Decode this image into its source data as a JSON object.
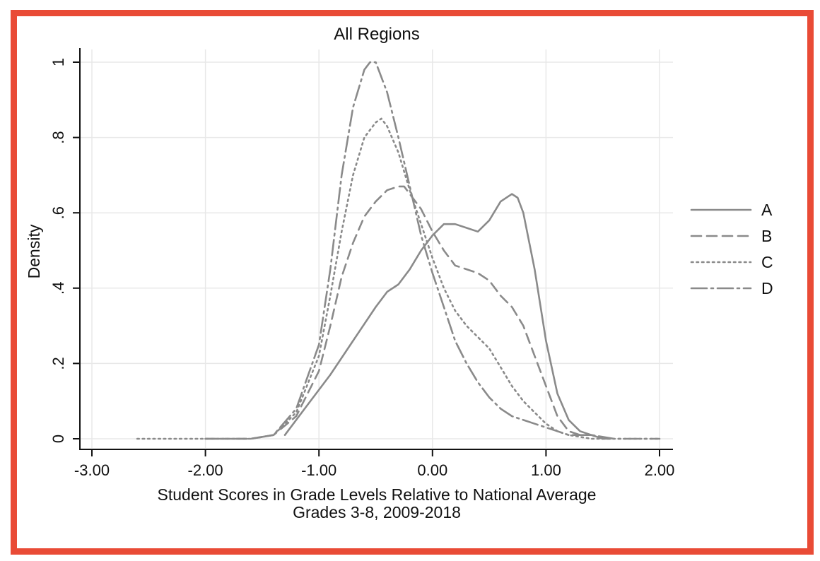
{
  "colors": {
    "frame": "#e94b36",
    "line": "#8a8a8a",
    "axis": "#111111",
    "grid": "#e8e8e8"
  },
  "chart_data": {
    "type": "line",
    "title": "All Regions",
    "xlabel": "Student Scores in Grade Levels Relative to National Average",
    "xlabel2": "Grades 3-8, 2009-2018",
    "ylabel": "Density",
    "xlim": [
      -3.0,
      2.0
    ],
    "ylim": [
      0,
      1.0
    ],
    "x_ticks": [
      -3,
      -2,
      -1,
      0,
      1,
      2
    ],
    "x_tick_labels": [
      "-3.00",
      "-2.00",
      "-1.00",
      "0.00",
      "1.00",
      "2.00"
    ],
    "y_ticks": [
      0,
      0.2,
      0.4,
      0.6,
      0.8,
      1.0
    ],
    "y_tick_labels": [
      "0",
      ".2",
      ".4",
      ".6",
      ".8",
      "1"
    ],
    "legend_position": "right",
    "series": [
      {
        "name": "A",
        "dash": "solid",
        "x": [
          -1.3,
          -1.1,
          -0.9,
          -0.7,
          -0.5,
          -0.4,
          -0.3,
          -0.2,
          -0.1,
          0.0,
          0.1,
          0.2,
          0.3,
          0.4,
          0.5,
          0.6,
          0.7,
          0.75,
          0.8,
          0.9,
          1.0,
          1.1,
          1.2,
          1.3,
          1.4,
          1.5
        ],
        "y": [
          0.01,
          0.09,
          0.17,
          0.26,
          0.35,
          0.39,
          0.41,
          0.45,
          0.5,
          0.54,
          0.57,
          0.57,
          0.56,
          0.55,
          0.58,
          0.63,
          0.65,
          0.64,
          0.6,
          0.45,
          0.26,
          0.12,
          0.05,
          0.02,
          0.01,
          0.0
        ]
      },
      {
        "name": "B",
        "dash": "dashed",
        "x": [
          -2.0,
          -1.8,
          -1.6,
          -1.4,
          -1.2,
          -1.0,
          -0.9,
          -0.8,
          -0.7,
          -0.6,
          -0.5,
          -0.4,
          -0.3,
          -0.25,
          -0.2,
          -0.1,
          0.0,
          0.1,
          0.2,
          0.3,
          0.4,
          0.5,
          0.6,
          0.7,
          0.8,
          0.9,
          1.0,
          1.1,
          1.2,
          1.3,
          1.4,
          1.5,
          1.6
        ],
        "y": [
          0.0,
          0.0,
          0.0,
          0.01,
          0.06,
          0.18,
          0.3,
          0.43,
          0.52,
          0.59,
          0.63,
          0.66,
          0.67,
          0.67,
          0.65,
          0.61,
          0.55,
          0.5,
          0.46,
          0.45,
          0.44,
          0.42,
          0.38,
          0.35,
          0.3,
          0.22,
          0.14,
          0.06,
          0.02,
          0.01,
          0.01,
          0.0,
          0.0
        ]
      },
      {
        "name": "C",
        "dash": "dotted",
        "x": [
          -2.6,
          -2.2,
          -1.8,
          -1.6,
          -1.4,
          -1.2,
          -1.0,
          -0.9,
          -0.8,
          -0.7,
          -0.6,
          -0.5,
          -0.45,
          -0.4,
          -0.3,
          -0.2,
          -0.1,
          0.0,
          0.1,
          0.2,
          0.3,
          0.4,
          0.5,
          0.6,
          0.7,
          0.8,
          0.9,
          1.0,
          1.1,
          1.2,
          1.4,
          1.6,
          1.8,
          2.0
        ],
        "y": [
          0.0,
          0.0,
          0.0,
          0.0,
          0.01,
          0.07,
          0.22,
          0.38,
          0.55,
          0.7,
          0.8,
          0.84,
          0.85,
          0.83,
          0.76,
          0.66,
          0.57,
          0.48,
          0.4,
          0.34,
          0.3,
          0.27,
          0.24,
          0.19,
          0.14,
          0.1,
          0.07,
          0.04,
          0.02,
          0.01,
          0.0,
          0.0,
          0.0,
          0.0
        ]
      },
      {
        "name": "D",
        "dash": "dashdot",
        "x": [
          -2.0,
          -1.8,
          -1.6,
          -1.4,
          -1.2,
          -1.0,
          -0.9,
          -0.8,
          -0.7,
          -0.6,
          -0.55,
          -0.5,
          -0.4,
          -0.3,
          -0.2,
          -0.1,
          0.0,
          0.1,
          0.2,
          0.3,
          0.4,
          0.5,
          0.6,
          0.7,
          0.8,
          0.9,
          1.0,
          1.1,
          1.2,
          1.4,
          1.6,
          1.8,
          2.0
        ],
        "y": [
          0.0,
          0.0,
          0.0,
          0.01,
          0.08,
          0.25,
          0.45,
          0.7,
          0.88,
          0.98,
          1.0,
          1.0,
          0.92,
          0.8,
          0.67,
          0.54,
          0.44,
          0.35,
          0.26,
          0.2,
          0.15,
          0.11,
          0.08,
          0.06,
          0.05,
          0.04,
          0.03,
          0.02,
          0.01,
          0.01,
          0.0,
          0.0,
          0.0
        ]
      }
    ]
  }
}
